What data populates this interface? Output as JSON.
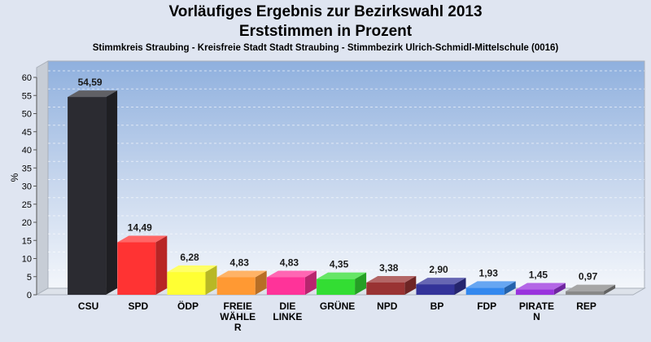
{
  "header": {
    "title_line1": "Vorläufiges Ergebnis zur Bezirkswahl 2013",
    "title_line2": "Erststimmen in Prozent",
    "subtitle": "Stimmkreis Straubing - Kreisfreie Stadt Stadt Straubing - Stimmbezirk Ulrich-Schmidl-Mittelschule (0016)"
  },
  "chart_data": {
    "type": "bar",
    "title": "Vorläufiges Ergebnis zur Bezirkswahl 2013 Erststimmen in Prozent",
    "ylabel": "%",
    "xlabel": "",
    "ylim": [
      0,
      60
    ],
    "yticks": [
      0,
      5,
      10,
      15,
      20,
      25,
      30,
      35,
      40,
      45,
      50,
      55,
      60
    ],
    "categories": [
      "CSU",
      "SPD",
      "ÖDP",
      "FREIE WÄHLER",
      "DIE LINKE",
      "GRÜNE",
      "NPD",
      "BP",
      "FDP",
      "PIRATEN",
      "REP"
    ],
    "category_display_lines": [
      [
        "CSU"
      ],
      [
        "SPD"
      ],
      [
        "ÖDP"
      ],
      [
        "FREIE",
        "WÄHLE",
        "R"
      ],
      [
        "DIE",
        "LINKE"
      ],
      [
        "GRÜNE"
      ],
      [
        "NPD"
      ],
      [
        "BP"
      ],
      [
        "FDP"
      ],
      [
        "PIRATE",
        "N"
      ],
      [
        "REP"
      ]
    ],
    "values": [
      54.59,
      14.49,
      6.28,
      4.83,
      4.83,
      4.35,
      3.38,
      2.9,
      1.93,
      1.45,
      0.97
    ],
    "value_labels": [
      "54,59",
      "14,49",
      "6,28",
      "4,83",
      "4,83",
      "4,35",
      "3,38",
      "2,90",
      "1,93",
      "1,45",
      "0,97"
    ],
    "colors": [
      "#2b2b31",
      "#ff3333",
      "#ffff33",
      "#ff9933",
      "#ff3399",
      "#33dd33",
      "#993333",
      "#333399",
      "#3388ee",
      "#9933dd",
      "#888888"
    ],
    "grid": true,
    "legend": "none"
  }
}
